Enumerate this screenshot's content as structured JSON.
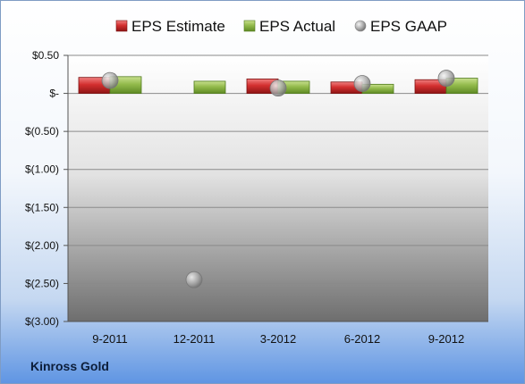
{
  "company_label": "Kinross Gold",
  "chart_data": {
    "type": "bar",
    "title": "",
    "xlabel": "",
    "ylabel": "",
    "categories": [
      "9-2011",
      "12-2011",
      "3-2012",
      "6-2012",
      "9-2012"
    ],
    "series": [
      {
        "name": "EPS Estimate",
        "kind": "bar",
        "color": "#c0282d",
        "values": [
          0.21,
          null,
          0.19,
          0.15,
          0.18
        ]
      },
      {
        "name": "EPS Actual",
        "kind": "bar",
        "color": "#8db446",
        "values": [
          0.22,
          0.16,
          0.16,
          0.12,
          0.2
        ]
      },
      {
        "name": "EPS GAAP",
        "kind": "point",
        "color": "#a8a8a8",
        "values": [
          0.17,
          -2.45,
          0.07,
          0.13,
          0.2
        ]
      }
    ],
    "ylim": [
      -3.0,
      0.5
    ],
    "yticks": [
      0.5,
      0,
      -0.5,
      -1.0,
      -1.5,
      -2.0,
      -2.5,
      -3.0
    ],
    "ytick_labels": [
      "$0.50",
      "$-",
      "$(0.50)",
      "$(1.00)",
      "$(1.50)",
      "$(2.00)",
      "$(2.50)",
      "$(3.00)"
    ],
    "grid": "horizontal",
    "legend": "top"
  }
}
